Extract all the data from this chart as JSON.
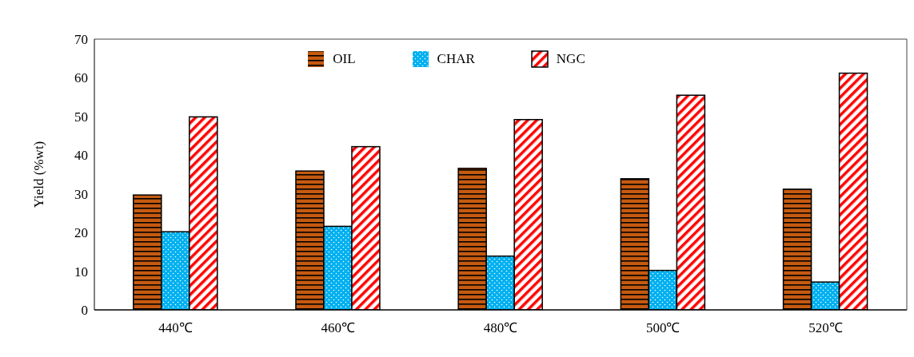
{
  "chart_data": {
    "type": "bar",
    "ylabel": "Yield (%wt)",
    "categories": [
      "440℃",
      "460℃",
      "480℃",
      "500℃",
      "520℃"
    ],
    "series": [
      {
        "name": "OIL",
        "color": "#c55a11",
        "values": [
          29.7,
          35.9,
          36.6,
          33.9,
          31.2
        ]
      },
      {
        "name": "CHAR",
        "color": "#00b0f0",
        "values": [
          20.2,
          21.6,
          13.9,
          10.2,
          7.2
        ]
      },
      {
        "name": "NGC",
        "color": "#ff0000",
        "values": [
          49.9,
          42.2,
          49.2,
          55.5,
          61.2
        ]
      }
    ],
    "ylim": [
      0,
      70
    ],
    "yticks": [
      0,
      10,
      20,
      30,
      40,
      50,
      60,
      70
    ],
    "grid": false,
    "legend": "top"
  }
}
